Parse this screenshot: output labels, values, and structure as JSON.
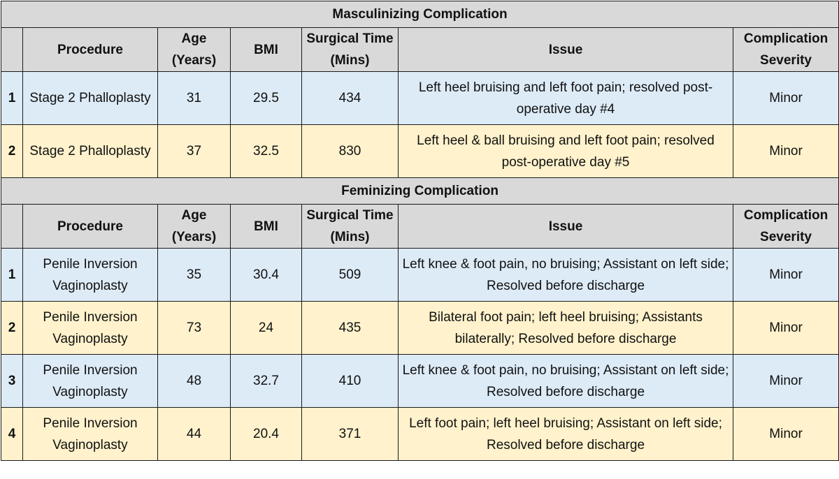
{
  "masculinizing": {
    "title": "Masculinizing Complication",
    "headers": {
      "procedure": "Procedure",
      "age": "Age (Years)",
      "bmi": "BMI",
      "time": "Surgical Time (Mins)",
      "issue": "Issue",
      "severity": "Complication Severity"
    },
    "rows": [
      {
        "num": "1",
        "procedure": "Stage 2 Phalloplasty",
        "age": "31",
        "bmi": "29.5",
        "time": "434",
        "issue": "Left heel bruising and left foot pain; resolved post-operative day #4",
        "severity": "Minor"
      },
      {
        "num": "2",
        "procedure": "Stage 2 Phalloplasty",
        "age": "37",
        "bmi": "32.5",
        "time": "830",
        "issue": "Left heel & ball bruising and left foot pain; resolved post-operative day #5",
        "severity": "Minor"
      }
    ]
  },
  "feminizing": {
    "title": "Feminizing Complication",
    "headers": {
      "procedure": "Procedure",
      "age": "Age (Years)",
      "bmi": "BMI",
      "time": "Surgical Time (Mins)",
      "issue": "Issue",
      "severity": "Complication Severity"
    },
    "rows": [
      {
        "num": "1",
        "procedure": "Penile Inversion Vaginoplasty",
        "age": "35",
        "bmi": "30.4",
        "time": "509",
        "issue": "Left knee & foot pain, no bruising; Assistant on left side; Resolved before discharge",
        "severity": "Minor"
      },
      {
        "num": "2",
        "procedure": "Penile Inversion Vaginoplasty",
        "age": "73",
        "bmi": "24",
        "time": "435",
        "issue": "Bilateral foot pain; left heel bruising; Assistants bilaterally; Resolved before discharge",
        "severity": "Minor"
      },
      {
        "num": "3",
        "procedure": "Penile Inversion Vaginoplasty",
        "age": "48",
        "bmi": "32.7",
        "time": "410",
        "issue": "Left knee & foot pain, no bruising; Assistant on left side; Resolved before discharge",
        "severity": "Minor"
      },
      {
        "num": "4",
        "procedure": "Penile Inversion Vaginoplasty",
        "age": "44",
        "bmi": "20.4",
        "time": "371",
        "issue": "Left foot pain; left heel bruising; Assistant on left side; Resolved before discharge",
        "severity": "Minor"
      }
    ]
  },
  "colors": {
    "header_bg": "#d9d9d9",
    "blue_row": "#ddebf7",
    "yellow_row": "#fff2cc"
  }
}
